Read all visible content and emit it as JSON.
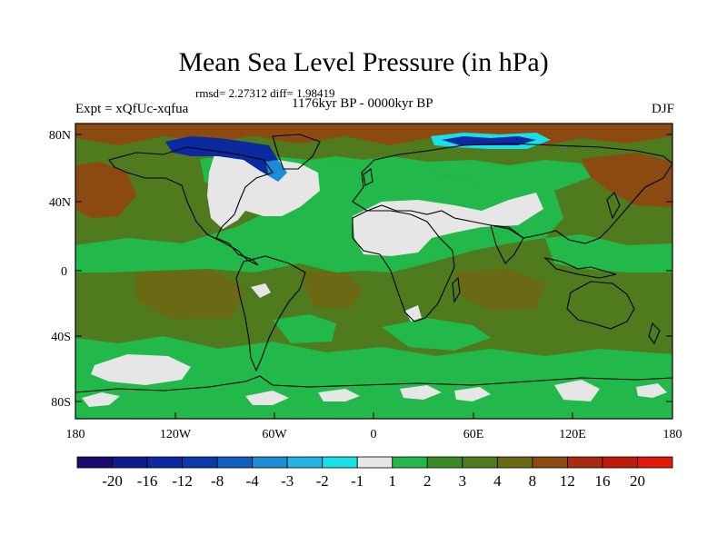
{
  "title": "Mean Sea Level Pressure (in hPa)",
  "stats": "rmsd= 2.27312 diff= 1.98419",
  "experiment": "Expt = xQfUc-xqfua",
  "period": "1176kyr BP - 0000kyr BP",
  "season": "DJF",
  "axes": {
    "lat_labels": [
      "80N",
      "40N",
      "0",
      "40S",
      "80S"
    ],
    "lon_labels": [
      "180",
      "120W",
      "60W",
      "0",
      "60E",
      "120E",
      "180"
    ]
  },
  "colorbar": {
    "labels": [
      "-20",
      "-16",
      "-12",
      "-8",
      "-4",
      "-3",
      "-2",
      "-1",
      "1",
      "2",
      "3",
      "4",
      "8",
      "12",
      "16",
      "20"
    ],
    "colors": [
      "#1a0a6e",
      "#0f1a8c",
      "#0b2aa0",
      "#0a3aa8",
      "#1060c0",
      "#1a8cd8",
      "#23b4e6",
      "#18e0e8",
      "#e6e6e6",
      "#22b84a",
      "#3a8a28",
      "#4f7a1e",
      "#6a6a14",
      "#8a4a12",
      "#a82a10",
      "#c01a0a",
      "#e01a0a"
    ]
  },
  "palette": {
    "ocean_base": "#4f7a1e",
    "green_band": "#22b84a",
    "near_zero": "#e6e6e6",
    "high": "#8a4a12",
    "low_deep": "#0b2aa0",
    "low_mid": "#1a8cd8",
    "low_light": "#18e0e8",
    "coast": "#000000"
  }
}
